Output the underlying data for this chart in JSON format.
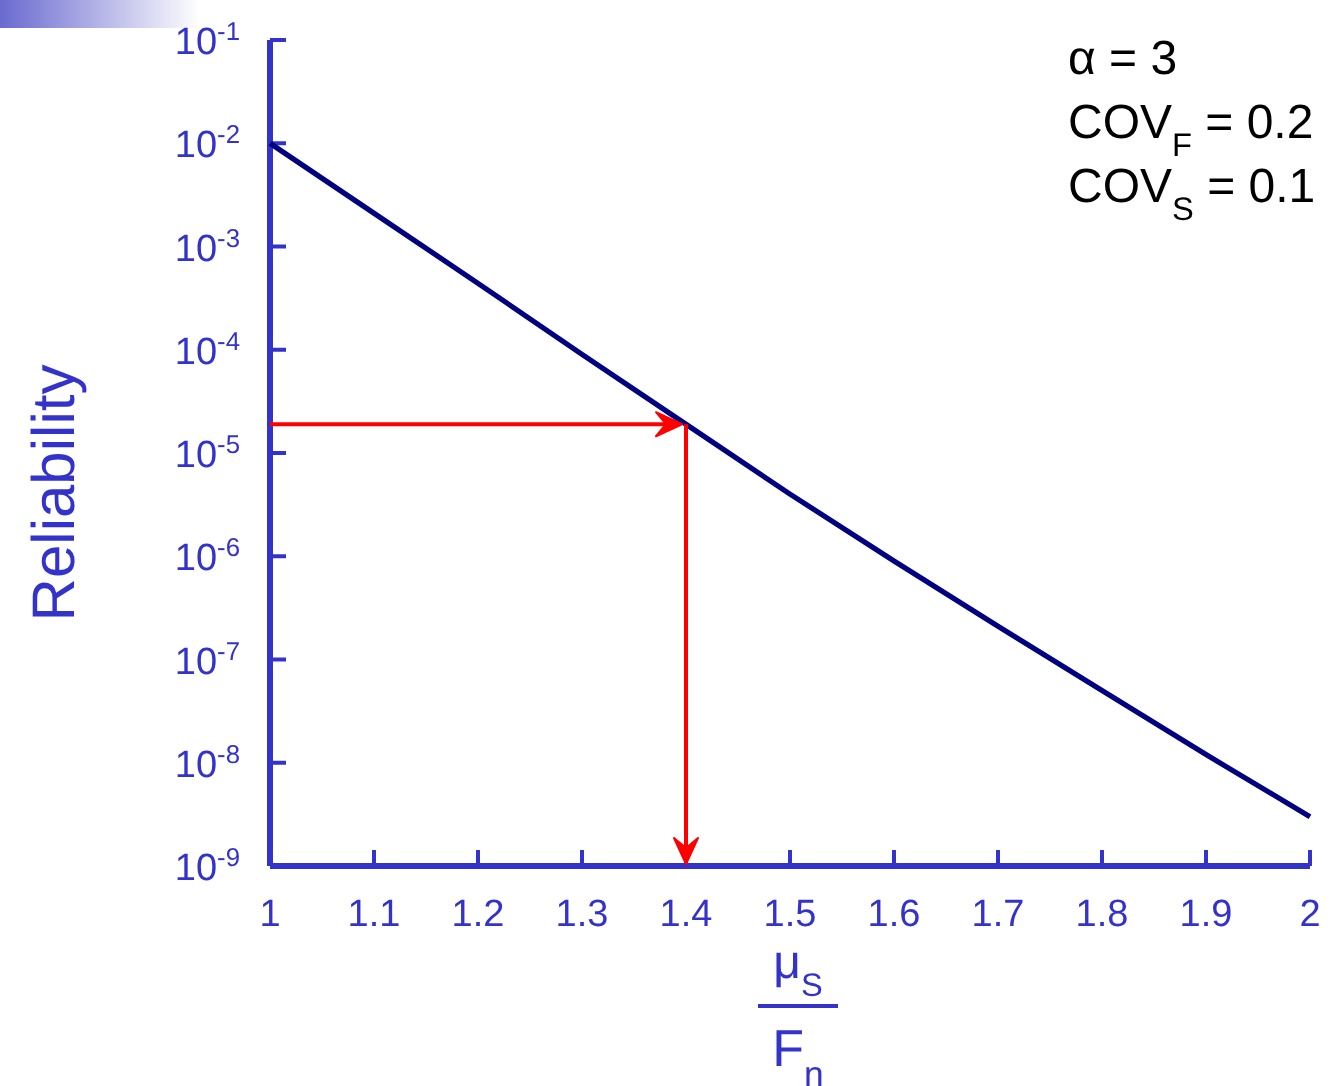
{
  "chart_data": {
    "type": "line",
    "xlabel": "μ$_{S}$\nF$_{n}$",
    "ylabel": "Reliability",
    "annotations": [
      "α = 3",
      "COV$_{F}$ = 0.2",
      "COV$_{S}$ = 0.1"
    ],
    "log": "y",
    "xlim": [
      1,
      2
    ],
    "ylim": [
      1e-09,
      0.1
    ],
    "xticks": [
      1,
      1.1,
      1.2,
      1.3,
      1.4,
      1.5,
      1.6,
      1.7,
      1.8,
      1.9,
      2
    ],
    "yticks": [
      {
        "value": 0.1,
        "label": "10$^{-1}$"
      },
      {
        "value": 0.01,
        "label": "10$^{-2}$"
      },
      {
        "value": 0.001,
        "label": "10$^{-3}$"
      },
      {
        "value": 0.0001,
        "label": "10$^{-4}$"
      },
      {
        "value": 1e-05,
        "label": "10$^{-5}$"
      },
      {
        "value": 1e-06,
        "label": "10$^{-6}$"
      },
      {
        "value": 1e-07,
        "label": "10$^{-7}$"
      },
      {
        "value": 1e-08,
        "label": "10$^{-8}$"
      },
      {
        "value": 1e-09,
        "label": "10$^{-9}$"
      }
    ],
    "ref_lines": [
      {
        "axis": "y",
        "value": 1.9e-05,
        "color": "#ff0000"
      },
      {
        "axis": "x",
        "value": 1.4,
        "color": "#ff0000"
      }
    ],
    "series": [
      {
        "color": "#000080",
        "x": [
          1,
          1.1,
          1.2,
          1.3,
          1.4,
          1.5,
          1.6,
          1.7,
          1.8,
          1.9,
          2
        ],
        "values": [
          0.01,
          0.0021,
          0.00044,
          9e-05,
          1.9e-05,
          4e-06,
          9e-07,
          2.1e-07,
          5e-08,
          1.2e-08,
          3e-09
        ]
      }
    ]
  }
}
